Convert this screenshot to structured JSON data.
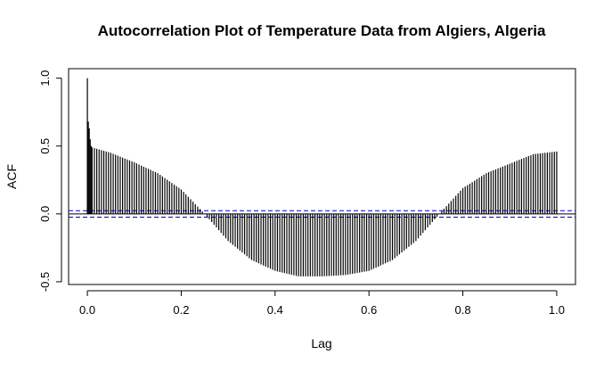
{
  "chart_data": {
    "type": "bar",
    "title": "Autocorrelation Plot of Temperature Data from Algiers, Algeria",
    "xlabel": "Lag",
    "ylabel": "ACF",
    "xlim": [
      -0.04,
      1.04
    ],
    "ylim": [
      -0.52,
      1.07
    ],
    "x_ticks": [
      "0.0",
      "0.2",
      "0.4",
      "0.6",
      "0.8",
      "1.0"
    ],
    "y_ticks": [
      "-0.5",
      "0.0",
      "0.5",
      "1.0"
    ],
    "confidence_bounds": [
      0.024,
      -0.024
    ],
    "confidence_line_color": "#0000cc",
    "bar_color": "#000000",
    "lag_step": 0.005,
    "initial_lags": [
      {
        "lag": 0.0,
        "acf": 1.0
      },
      {
        "lag": 0.002,
        "acf": 0.68
      },
      {
        "lag": 0.004,
        "acf": 0.63
      },
      {
        "lag": 0.006,
        "acf": 0.55
      },
      {
        "lag": 0.008,
        "acf": 0.5
      }
    ],
    "acf_profile": [
      {
        "lag": 0.01,
        "acf": 0.49
      },
      {
        "lag": 0.05,
        "acf": 0.45
      },
      {
        "lag": 0.1,
        "acf": 0.38
      },
      {
        "lag": 0.15,
        "acf": 0.3
      },
      {
        "lag": 0.2,
        "acf": 0.18
      },
      {
        "lag": 0.25,
        "acf": 0.0
      },
      {
        "lag": 0.3,
        "acf": -0.2
      },
      {
        "lag": 0.35,
        "acf": -0.34
      },
      {
        "lag": 0.4,
        "acf": -0.42
      },
      {
        "lag": 0.45,
        "acf": -0.46
      },
      {
        "lag": 0.5,
        "acf": -0.46
      },
      {
        "lag": 0.55,
        "acf": -0.45
      },
      {
        "lag": 0.6,
        "acf": -0.42
      },
      {
        "lag": 0.65,
        "acf": -0.34
      },
      {
        "lag": 0.7,
        "acf": -0.2
      },
      {
        "lag": 0.75,
        "acf": 0.0
      },
      {
        "lag": 0.8,
        "acf": 0.19
      },
      {
        "lag": 0.85,
        "acf": 0.3
      },
      {
        "lag": 0.9,
        "acf": 0.37
      },
      {
        "lag": 0.95,
        "acf": 0.44
      },
      {
        "lag": 1.0,
        "acf": 0.46
      }
    ]
  }
}
